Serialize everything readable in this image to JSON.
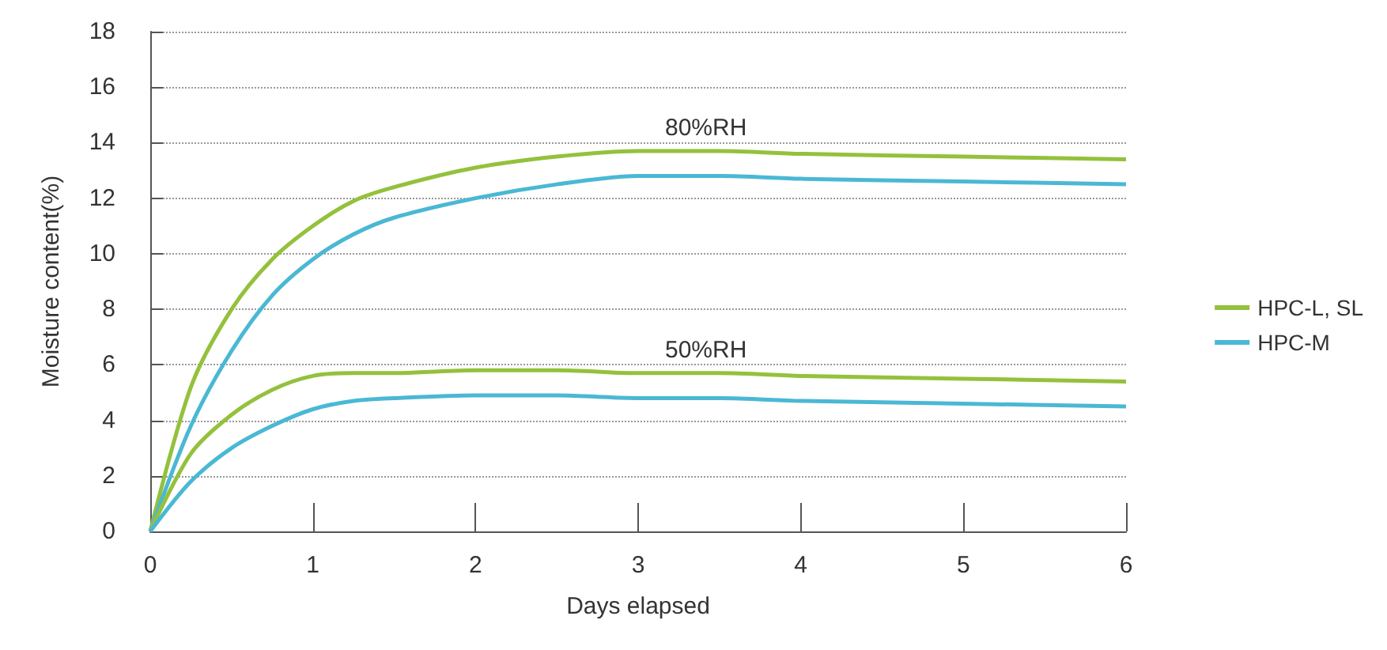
{
  "chart_data": {
    "type": "line",
    "xlabel": "Days elapsed",
    "ylabel": "Moisture content(%)",
    "x": [
      0,
      0.25,
      0.5,
      0.75,
      1,
      1.25,
      1.5,
      2,
      2.5,
      3,
      3.5,
      4,
      5,
      6
    ],
    "series": [
      {
        "name": "HPC-L, SL",
        "color": "#94c13c",
        "values": [
          0,
          5.2,
          8,
          9.8,
          11,
          11.9,
          12.4,
          13.1,
          13.5,
          13.7,
          13.7,
          13.6,
          13.5,
          13.4
        ]
      },
      {
        "name": "HPC-M",
        "color": "#4ab8d4",
        "values": [
          0,
          3.8,
          6.5,
          8.5,
          9.8,
          10.7,
          11.3,
          12,
          12.5,
          12.8,
          12.8,
          12.7,
          12.6,
          12.5
        ]
      },
      {
        "color": "#94c13c",
        "values": [
          0,
          2.8,
          4.2,
          5.1,
          5.6,
          5.7,
          5.7,
          5.8,
          5.8,
          5.7,
          5.7,
          5.6,
          5.5,
          5.4
        ]
      },
      {
        "color": "#4ab8d4",
        "values": [
          0,
          1.8,
          3.0,
          3.8,
          4.4,
          4.7,
          4.8,
          4.9,
          4.9,
          4.8,
          4.8,
          4.7,
          4.6,
          4.5
        ]
      }
    ],
    "annotations": [
      "80%RH",
      "50%RH"
    ],
    "xlim": [
      0,
      6
    ],
    "xticks": [
      0,
      1,
      2,
      3,
      4,
      5,
      6
    ],
    "ylim": [
      0,
      18
    ],
    "yticks": [
      0,
      2,
      4,
      6,
      8,
      10,
      12,
      14,
      16,
      18
    ],
    "grid": "y",
    "legend": "right",
    "marker": "none",
    "line_style": "solid"
  }
}
